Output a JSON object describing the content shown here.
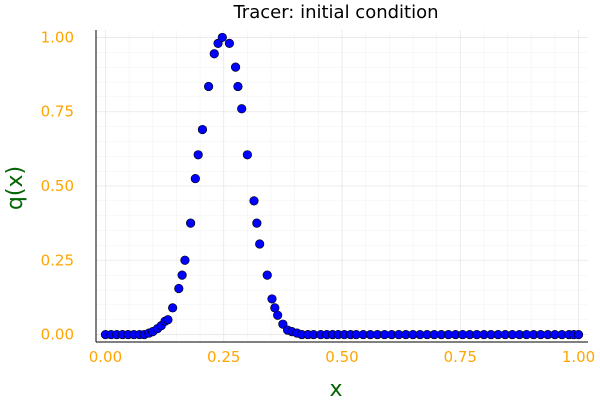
{
  "colors": {
    "background": "#ffffff",
    "marker_fill": "#0000ff",
    "marker_stroke": "#000000",
    "tick_label": "#ffa500",
    "axis_label": "#006400",
    "grid_major": "#e6e6e6",
    "grid_minor": "#f3f3f3",
    "axis_line": "#000000"
  },
  "chart_data": {
    "type": "scatter",
    "title": "Tracer: initial condition",
    "xlabel": "x",
    "ylabel": "q(x)",
    "xlim": [
      -0.02,
      1.02
    ],
    "ylim": [
      -0.025,
      1.025
    ],
    "xticks": [
      0.0,
      0.25,
      0.5,
      0.75,
      1.0
    ],
    "xtick_labels": [
      "0.00",
      "0.25",
      "0.50",
      "0.75",
      "1.00"
    ],
    "yticks": [
      0.0,
      0.25,
      0.5,
      0.75,
      1.0
    ],
    "ytick_labels": [
      "0.00",
      "0.25",
      "0.50",
      "0.75",
      "1.00"
    ],
    "grid": true,
    "minor_grid": true,
    "legend": "none",
    "x": [
      0.0,
      0.012,
      0.024,
      0.036,
      0.048,
      0.06,
      0.072,
      0.082,
      0.092,
      0.1,
      0.11,
      0.118,
      0.126,
      0.132,
      0.142,
      0.155,
      0.162,
      0.168,
      0.18,
      0.19,
      0.196,
      0.205,
      0.218,
      0.23,
      0.238,
      0.247,
      0.262,
      0.275,
      0.28,
      0.288,
      0.3,
      0.314,
      0.32,
      0.326,
      0.342,
      0.352,
      0.358,
      0.364,
      0.375,
      0.385,
      0.394,
      0.405,
      0.415,
      0.428,
      0.44,
      0.455,
      0.468,
      0.48,
      0.492,
      0.505,
      0.518,
      0.53,
      0.545,
      0.56,
      0.575,
      0.59,
      0.605,
      0.62,
      0.635,
      0.65,
      0.665,
      0.68,
      0.695,
      0.71,
      0.725,
      0.74,
      0.755,
      0.77,
      0.785,
      0.8,
      0.815,
      0.83,
      0.845,
      0.86,
      0.875,
      0.89,
      0.905,
      0.92,
      0.935,
      0.95,
      0.965,
      0.98,
      0.99,
      1.0
    ],
    "y": [
      0.0,
      0.0,
      0.0,
      0.0,
      0.0,
      0.0,
      0.0,
      0.0,
      0.005,
      0.01,
      0.02,
      0.03,
      0.045,
      0.05,
      0.09,
      0.155,
      0.2,
      0.25,
      0.375,
      0.525,
      0.605,
      0.69,
      0.835,
      0.945,
      0.98,
      1.0,
      0.98,
      0.9,
      0.835,
      0.76,
      0.605,
      0.45,
      0.375,
      0.305,
      0.2,
      0.12,
      0.09,
      0.065,
      0.035,
      0.015,
      0.01,
      0.005,
      0.0,
      0.0,
      0.0,
      0.0,
      0.0,
      0.0,
      0.0,
      0.0,
      0.0,
      0.0,
      0.0,
      0.0,
      0.0,
      0.0,
      0.0,
      0.0,
      0.0,
      0.0,
      0.0,
      0.0,
      0.0,
      0.0,
      0.0,
      0.0,
      0.0,
      0.0,
      0.0,
      0.0,
      0.0,
      0.0,
      0.0,
      0.0,
      0.0,
      0.0,
      0.0,
      0.0,
      0.0,
      0.0,
      0.0,
      0.0,
      0.0,
      0.0
    ]
  }
}
